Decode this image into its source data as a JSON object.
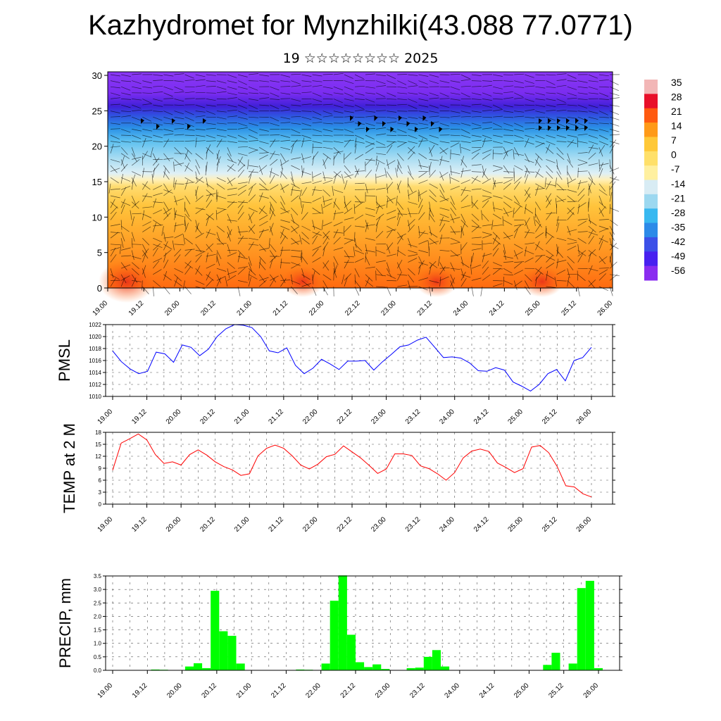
{
  "title": "Kazhydromet for Mynzhilki(43.088 77.0771)",
  "subtitle": "19 ☆☆☆☆☆☆☆☆ 2025",
  "time_labels": [
    "19.00",
    "19.12",
    "20.00",
    "20.12",
    "21.00",
    "21.12",
    "22.00",
    "22.12",
    "23.00",
    "23.12",
    "24.00",
    "24.12",
    "25.00",
    "25.12",
    "26.00"
  ],
  "chart_data": [
    {
      "type": "heatmap",
      "name_key": "temperature-height-section",
      "x_ticks": [
        "19.00",
        "19.12",
        "20.00",
        "20.12",
        "21.00",
        "21.12",
        "22.00",
        "22.12",
        "23.00",
        "23.12",
        "24.00",
        "24.12",
        "25.00",
        "25.12",
        "26.00"
      ],
      "y_ticks": [
        "0",
        "5",
        "10",
        "15",
        "20",
        "25",
        "30"
      ],
      "ylim": [
        0,
        30.5
      ],
      "colorbar_labels": [
        "35",
        "28",
        "21",
        "14",
        "7",
        "0",
        "-7",
        "-14",
        "-21",
        "-28",
        "-35",
        "-42",
        "-49",
        "-56"
      ],
      "colorbar_colors": [
        "#f2b6b6",
        "#e8102a",
        "#ff5a10",
        "#ff9a18",
        "#ffc838",
        "#ffe06a",
        "#fff0a0",
        "#d8ecf4",
        "#9cd8f0",
        "#38b8f0",
        "#2c8ae8",
        "#3c50e8",
        "#4820f0",
        "#8a2cf0"
      ],
      "wind_barbs": "on"
    },
    {
      "type": "line",
      "name_key": "pmsl",
      "ylabel": "PMSL",
      "x_ticks": [
        "19.00",
        "19.12",
        "20.00",
        "20.12",
        "21.00",
        "21.12",
        "22.00",
        "22.12",
        "23.00",
        "23.12",
        "24.00",
        "24.12",
        "25.00",
        "25.12",
        "26.00"
      ],
      "y_ticks": [
        "1022",
        "1020",
        "1018",
        "1016",
        "1014",
        "1012",
        "1010"
      ],
      "ylim": [
        1010,
        1022
      ],
      "color": "#0000ff",
      "grid": "dashed",
      "values": [
        1017.6,
        1015.8,
        1014.6,
        1013.8,
        1014.2,
        1017.4,
        1017.1,
        1015.7,
        1018.6,
        1018.2,
        1016.8,
        1017.9,
        1020.0,
        1021.3,
        1022.0,
        1021.9,
        1021.5,
        1020.0,
        1017.6,
        1017.3,
        1018.1,
        1015.2,
        1013.8,
        1014.7,
        1016.2,
        1015.4,
        1014.5,
        1015.9,
        1015.9,
        1016.0,
        1014.4,
        1015.8,
        1017.0,
        1018.3,
        1018.6,
        1019.4,
        1019.9,
        1018.2,
        1016.5,
        1016.6,
        1016.4,
        1015.6,
        1014.3,
        1014.2,
        1014.8,
        1014.4,
        1012.4,
        1011.7,
        1010.9,
        1012.0,
        1013.8,
        1014.5,
        1012.6,
        1016.0,
        1016.5,
        1018.2
      ]
    },
    {
      "type": "line",
      "name_key": "temp2m",
      "ylabel": "TEMP at 2 M",
      "x_ticks": [
        "19.00",
        "19.12",
        "20.00",
        "20.12",
        "21.00",
        "21.12",
        "22.00",
        "22.12",
        "23.00",
        "23.12",
        "24.00",
        "24.12",
        "25.00",
        "25.12",
        "26.00"
      ],
      "y_ticks": [
        "18",
        "15",
        "12",
        "9",
        "6",
        "3",
        "0"
      ],
      "ylim": [
        0,
        18
      ],
      "color": "#ff0000",
      "grid": "dashed",
      "values": [
        8.5,
        15.3,
        16.4,
        17.6,
        16.1,
        12.4,
        10.2,
        10.6,
        9.8,
        12.4,
        13.6,
        12.3,
        10.6,
        9.4,
        8.6,
        7.2,
        7.6,
        12.1,
        14.0,
        14.8,
        14.0,
        12.1,
        9.8,
        8.8,
        10.0,
        11.9,
        12.5,
        14.6,
        13.1,
        11.6,
        9.7,
        7.7,
        8.8,
        12.6,
        12.6,
        12.2,
        9.6,
        8.9,
        7.6,
        6.0,
        7.9,
        11.6,
        13.3,
        13.8,
        13.2,
        10.3,
        9.2,
        7.9,
        8.9,
        14.3,
        14.7,
        12.9,
        9.4,
        4.6,
        4.3,
        2.6,
        1.8
      ]
    },
    {
      "type": "bar",
      "name_key": "precip",
      "ylabel": "PRECIP, mm",
      "x_ticks": [
        "19.00",
        "19.12",
        "20.00",
        "20.12",
        "21.00",
        "21.12",
        "22.00",
        "22.12",
        "23.00",
        "23.12",
        "24.00",
        "24.12",
        "25.00",
        "25.12",
        "26.00"
      ],
      "y_ticks": [
        "3.5",
        "3.0",
        "2.5",
        "2.0",
        "1.5",
        "1.0",
        "0.5",
        "0.0"
      ],
      "ylim": [
        0,
        3.5
      ],
      "color": "#00ff00",
      "grid": "dashed",
      "values": [
        0,
        0,
        0,
        0,
        0,
        0.03,
        0.02,
        0,
        0,
        0.14,
        0.26,
        0.08,
        2.95,
        1.45,
        1.28,
        0.25,
        0,
        0,
        0,
        0,
        0,
        0,
        0.03,
        0.02,
        0,
        0.25,
        2.58,
        3.52,
        1.32,
        0.3,
        0.12,
        0.22,
        0.05,
        0,
        0,
        0.08,
        0.1,
        0.5,
        0.75,
        0.14,
        0,
        0,
        0,
        0,
        0,
        0,
        0,
        0,
        0,
        0,
        0,
        0.2,
        0.65,
        0,
        0.25,
        3.05,
        3.32,
        0.08
      ]
    }
  ]
}
